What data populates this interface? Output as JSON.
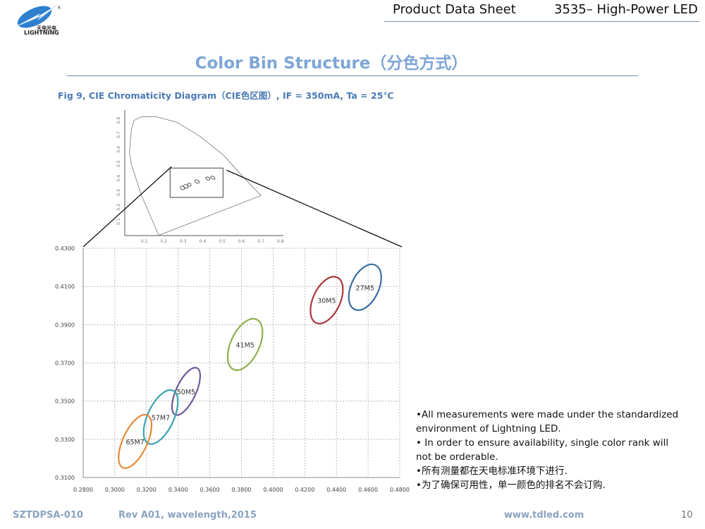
{
  "header": {
    "doc_type": "Product Data Sheet",
    "product": "3535– High-Power LED",
    "logo_text_cn": "天电光电",
    "logo_text_en": "LIGHTNING",
    "logo_mark": "R"
  },
  "title": "Color Bin Structure（分色方式）",
  "caption": "Fig 9, CIE Chromaticity Diagram（CIE色区图）, IF = 350mA, Ta = 25℃",
  "notes": [
    "•All measurements were made under the standardized environment of Lightning LED.",
    "• In order to ensure availability, single color rank will not be orderable.",
    "•所有测量都在天电标准环境下进行.",
    "•为了确保可用性，单一颜色的排名不会订购."
  ],
  "footer": {
    "doc_id": "SZTDPSA-010",
    "revision": "Rev A01, wavelength,2015",
    "website": "www.tdled.com",
    "page": "10"
  },
  "chart_data": [
    {
      "type": "line",
      "description_shown": "CIE 1931 overview",
      "xlim": [
        0,
        0.8
      ],
      "ylim": [
        0,
        0.85
      ],
      "xticks": [
        "0.1",
        "0.2",
        "0.3",
        "0.4",
        "0.5",
        "0.6",
        "0.7",
        "0.8"
      ],
      "yticks": [
        "0.1",
        "0.2",
        "0.3",
        "0.4",
        "0.5",
        "0.6",
        "0.7",
        "0.8"
      ],
      "locus": [
        [
          0.175,
          0.005
        ],
        [
          0.085,
          0.283
        ],
        [
          0.034,
          0.495
        ],
        [
          0.024,
          0.577
        ],
        [
          0.034,
          0.74
        ],
        [
          0.048,
          0.8
        ],
        [
          0.085,
          0.824
        ],
        [
          0.157,
          0.826
        ],
        [
          0.266,
          0.788
        ],
        [
          0.386,
          0.69
        ],
        [
          0.507,
          0.56
        ],
        [
          0.604,
          0.414
        ],
        [
          0.7,
          0.28
        ],
        [
          0.175,
          0.005
        ]
      ],
      "zoom_box": {
        "x": [
          0.233,
          0.505
        ],
        "y": [
          0.267,
          0.47
        ]
      }
    },
    {
      "type": "scatter",
      "grid": true,
      "xlim": [
        0.28,
        0.48
      ],
      "ylim": [
        0.31,
        0.43
      ],
      "xticks": [
        "0.2800",
        "0.3000",
        "0.3200",
        "0.3400",
        "0.3600",
        "0.3800",
        "0.4000",
        "0.4200",
        "0.4400",
        "0.4600",
        "0.4800"
      ],
      "yticks": [
        "0.3100",
        "0.3300",
        "0.3500",
        "0.3700",
        "0.3900",
        "0.4100",
        "0.4300"
      ],
      "bins": [
        {
          "name": "27M5",
          "color": "#3b6fa3",
          "x": [
            0.4478,
            0.4683
          ],
          "y": [
            0.3976,
            0.4216
          ]
        },
        {
          "name": "30M5",
          "color": "#a8393e",
          "x": [
            0.4236,
            0.4441
          ],
          "y": [
            0.3906,
            0.4151
          ]
        },
        {
          "name": "41M5",
          "color": "#8fad4d",
          "x": [
            0.3713,
            0.3933
          ],
          "y": [
            0.3662,
            0.3931
          ]
        },
        {
          "name": "50M5",
          "color": "#6e5a9a",
          "x": [
            0.3361,
            0.3539
          ],
          "y": [
            0.3427,
            0.3675
          ]
        },
        {
          "name": "57M7",
          "color": "#3aa3b5",
          "x": [
            0.3182,
            0.3398
          ],
          "y": [
            0.3275,
            0.3558
          ]
        },
        {
          "name": "65M7",
          "color": "#e68a3a",
          "x": [
            0.3024,
            0.3232
          ],
          "y": [
            0.3149,
            0.3429
          ]
        }
      ]
    }
  ]
}
